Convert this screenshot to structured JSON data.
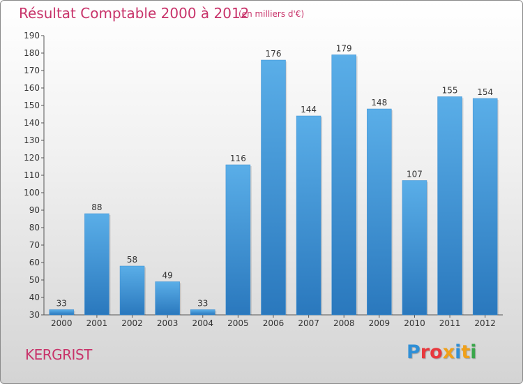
{
  "header": {
    "title": "Résultat Comptable 2000 à 2012",
    "subtitle": "(en milliers d'€)"
  },
  "footer": {
    "commune": "KERGRIST",
    "logo_letters": [
      "P",
      "r",
      "o",
      "x",
      "i",
      "t",
      "i"
    ],
    "logo_colors": [
      "#2f8fd6",
      "#e8383d",
      "#e8383d",
      "#f0a019",
      "#2f8fd6",
      "#f0a019",
      "#3aa74b"
    ]
  },
  "chart_data": {
    "type": "bar",
    "categories": [
      "2000",
      "2001",
      "2002",
      "2003",
      "2004",
      "2005",
      "2006",
      "2007",
      "2008",
      "2009",
      "2010",
      "2011",
      "2012"
    ],
    "values": [
      33,
      88,
      58,
      49,
      33,
      116,
      176,
      144,
      179,
      148,
      107,
      155,
      154
    ],
    "title": "Résultat Comptable 2000 à 2012",
    "subtitle": "(en milliers d'€)",
    "xlabel": "",
    "ylabel": "",
    "ylim": [
      30,
      190
    ],
    "yticks": [
      30,
      40,
      50,
      60,
      70,
      80,
      90,
      100,
      110,
      120,
      130,
      140,
      150,
      160,
      170,
      180,
      190
    ],
    "grid": false,
    "bar_color": "#4a9fdf",
    "bar_color_dark": "#2a78bd"
  }
}
